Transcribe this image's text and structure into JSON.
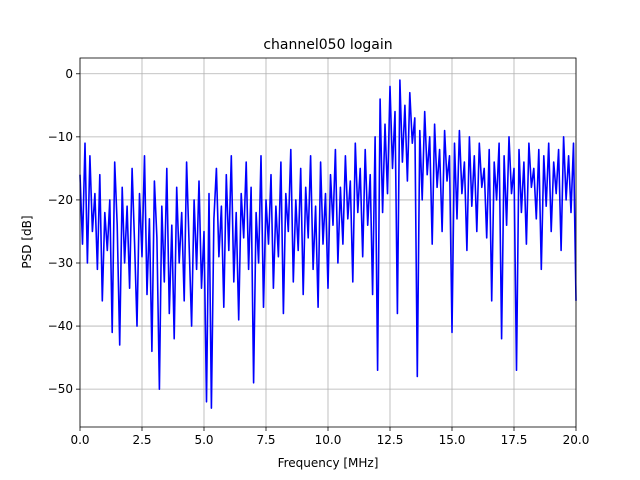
{
  "chart_data": {
    "type": "line",
    "title": "channel050 logain",
    "xlabel": "Frequency [MHz]",
    "ylabel": "PSD [dB]",
    "xlim": [
      0,
      20
    ],
    "ylim": [
      -56,
      2.5
    ],
    "xticks": [
      0,
      2.5,
      5,
      7.5,
      10,
      12.5,
      15,
      17.5,
      20
    ],
    "xtick_labels": [
      "0.0",
      "2.5",
      "5.0",
      "7.5",
      "10.0",
      "12.5",
      "15.0",
      "17.5",
      "20.0"
    ],
    "yticks": [
      0,
      -10,
      -20,
      -30,
      -40,
      -50
    ],
    "ytick_labels": [
      "0",
      "−10",
      "−20",
      "−30",
      "−40",
      "−50"
    ],
    "grid": true,
    "series": [
      {
        "color": "#0000ff",
        "x": [
          0.0,
          0.1,
          0.2,
          0.3,
          0.4,
          0.5,
          0.6,
          0.7,
          0.8,
          0.9,
          1.0,
          1.1,
          1.2,
          1.3,
          1.4,
          1.5,
          1.6,
          1.7,
          1.8,
          1.9,
          2.0,
          2.1,
          2.2,
          2.3,
          2.4,
          2.5,
          2.6,
          2.7,
          2.8,
          2.9,
          3.0,
          3.1,
          3.2,
          3.3,
          3.4,
          3.5,
          3.6,
          3.7,
          3.8,
          3.9,
          4.0,
          4.1,
          4.2,
          4.3,
          4.4,
          4.5,
          4.6,
          4.7,
          4.8,
          4.9,
          5.0,
          5.1,
          5.2,
          5.3,
          5.4,
          5.5,
          5.6,
          5.7,
          5.8,
          5.9,
          6.0,
          6.1,
          6.2,
          6.3,
          6.4,
          6.5,
          6.6,
          6.7,
          6.8,
          6.9,
          7.0,
          7.1,
          7.2,
          7.3,
          7.4,
          7.5,
          7.6,
          7.7,
          7.8,
          7.9,
          8.0,
          8.1,
          8.2,
          8.3,
          8.4,
          8.5,
          8.6,
          8.7,
          8.8,
          8.9,
          9.0,
          9.1,
          9.2,
          9.3,
          9.4,
          9.5,
          9.6,
          9.7,
          9.8,
          9.9,
          10.0,
          10.1,
          10.2,
          10.3,
          10.4,
          10.5,
          10.6,
          10.7,
          10.8,
          10.9,
          11.0,
          11.1,
          11.2,
          11.3,
          11.4,
          11.5,
          11.6,
          11.7,
          11.8,
          11.9,
          12.0,
          12.1,
          12.2,
          12.3,
          12.4,
          12.5,
          12.6,
          12.7,
          12.8,
          12.9,
          13.0,
          13.1,
          13.2,
          13.3,
          13.4,
          13.5,
          13.6,
          13.7,
          13.8,
          13.9,
          14.0,
          14.1,
          14.2,
          14.3,
          14.4,
          14.5,
          14.6,
          14.7,
          14.8,
          14.9,
          15.0,
          15.1,
          15.2,
          15.3,
          15.4,
          15.5,
          15.6,
          15.7,
          15.8,
          15.9,
          16.0,
          16.1,
          16.2,
          16.3,
          16.4,
          16.5,
          16.6,
          16.7,
          16.8,
          16.9,
          17.0,
          17.1,
          17.2,
          17.3,
          17.4,
          17.5,
          17.6,
          17.7,
          17.8,
          17.9,
          18.0,
          18.1,
          18.2,
          18.3,
          18.4,
          18.5,
          18.6,
          18.7,
          18.8,
          18.9,
          19.0,
          19.1,
          19.2,
          19.3,
          19.4,
          19.5,
          19.6,
          19.7,
          19.8,
          19.9,
          20.0
        ],
        "y": [
          -16,
          -27,
          -11,
          -30,
          -13,
          -25,
          -19,
          -31,
          -16,
          -36,
          -22,
          -28,
          -20,
          -41,
          -14,
          -24,
          -43,
          -18,
          -30,
          -21,
          -34,
          -15,
          -27,
          -40,
          -19,
          -29,
          -13,
          -35,
          -23,
          -44,
          -17,
          -26,
          -50,
          -21,
          -33,
          -15,
          -38,
          -24,
          -42,
          -18,
          -30,
          -22,
          -36,
          -14,
          -27,
          -40,
          -20,
          -31,
          -17,
          -34,
          -25,
          -52,
          -19,
          -53,
          -23,
          -15,
          -29,
          -21,
          -37,
          -16,
          -28,
          -13,
          -33,
          -22,
          -39,
          -19,
          -26,
          -14,
          -31,
          -18,
          -49,
          -22,
          -30,
          -13,
          -37,
          -20,
          -27,
          -16,
          -34,
          -21,
          -29,
          -14,
          -38,
          -19,
          -25,
          -12,
          -33,
          -20,
          -28,
          -15,
          -35,
          -18,
          -26,
          -13,
          -31,
          -21,
          -37,
          -14,
          -27,
          -19,
          -34,
          -16,
          -24,
          -12,
          -30,
          -18,
          -27,
          -13,
          -23,
          -17,
          -33,
          -11,
          -22,
          -15,
          -29,
          -12,
          -24,
          -16,
          -35,
          -10,
          -47,
          -4,
          -22,
          -8,
          -19,
          -2,
          -15,
          -6,
          -38,
          -1,
          -14,
          -5,
          -17,
          -3,
          -11,
          -7,
          -48,
          -9,
          -20,
          -6,
          -16,
          -10,
          -27,
          -8,
          -18,
          -12,
          -25,
          -9,
          -17,
          -13,
          -41,
          -11,
          -23,
          -9,
          -19,
          -14,
          -28,
          -10,
          -21,
          -13,
          -25,
          -11,
          -18,
          -15,
          -26,
          -12,
          -36,
          -14,
          -20,
          -11,
          -42,
          -13,
          -24,
          -10,
          -19,
          -15,
          -47,
          -12,
          -22,
          -14,
          -27,
          -11,
          -18,
          -15,
          -23,
          -12,
          -31,
          -13,
          -21,
          -11,
          -25,
          -14,
          -19,
          -12,
          -28,
          -10,
          -20,
          -13,
          -22,
          -11,
          -36
        ]
      }
    ]
  }
}
